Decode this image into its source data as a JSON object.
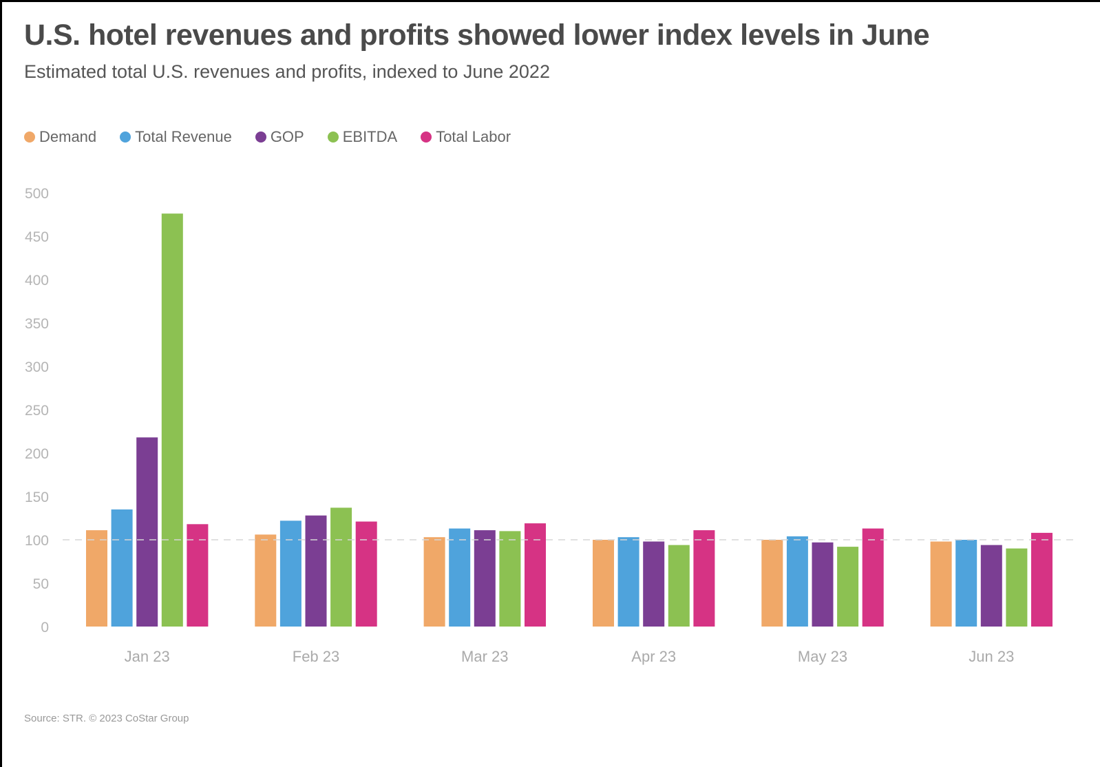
{
  "title": "U.S. hotel revenues and profits showed lower index levels in June",
  "subtitle": "Estimated total U.S. revenues and profits, indexed to June 2022",
  "source": "Source: STR. © 2023 CoStar Group",
  "chart_data": {
    "type": "bar",
    "title": "U.S. hotel revenues and profits showed lower index levels in June",
    "subtitle": "Estimated total U.S. revenues and profits, indexed to June 2022",
    "xlabel": "",
    "ylabel": "",
    "ylim": [
      0,
      500
    ],
    "yticks": [
      0,
      50,
      100,
      150,
      200,
      250,
      300,
      350,
      400,
      450,
      500
    ],
    "reference_line": 100,
    "grid": false,
    "legend_position": "top-left",
    "categories": [
      "Jan 23",
      "Feb 23",
      "Mar 23",
      "Apr 23",
      "May 23",
      "Jun 23"
    ],
    "series": [
      {
        "name": "Demand",
        "color": "#f0a868",
        "values": [
          111,
          106,
          103,
          100,
          100,
          98
        ]
      },
      {
        "name": "Total Revenue",
        "color": "#4fa3dc",
        "values": [
          135,
          122,
          113,
          103,
          104,
          100
        ]
      },
      {
        "name": "GOP",
        "color": "#7b3e93",
        "values": [
          218,
          128,
          111,
          98,
          97,
          94
        ]
      },
      {
        "name": "EBITDA",
        "color": "#8cc152",
        "values": [
          476,
          137,
          110,
          94,
          92,
          90
        ]
      },
      {
        "name": "Total Labor",
        "color": "#d63384",
        "values": [
          118,
          121,
          119,
          111,
          113,
          108
        ]
      }
    ]
  }
}
